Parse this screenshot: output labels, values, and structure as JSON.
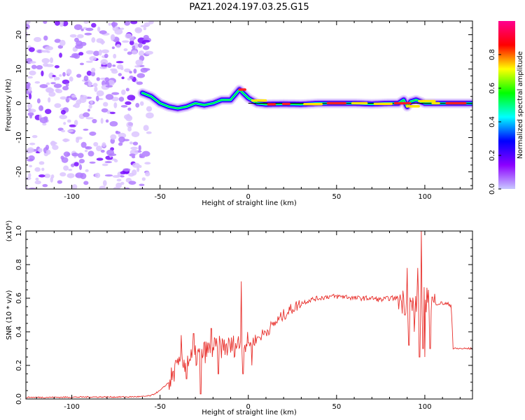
{
  "figure": {
    "title": "PAZ1.2024.197.03.25.G15"
  },
  "chart_data": [
    {
      "type": "heatmap",
      "xlabel": "Height of straight line (km)",
      "ylabel": "Frequency (Hz)",
      "xlim": [
        -126,
        127
      ],
      "ylim": [
        -25,
        24
      ],
      "x_ticks": [
        -100,
        -50,
        0,
        50,
        100
      ],
      "y_ticks": [
        -20,
        -10,
        0,
        10,
        20
      ],
      "grid": false,
      "colorbar": {
        "label": "Normalized spectral amplitude",
        "range": [
          0,
          1
        ],
        "ticks": [
          "0.0",
          "0.2",
          "0.4",
          "0.6",
          "0.8"
        ],
        "colors": [
          "#c8c8ff",
          "#8c00ff",
          "#0000ff",
          "#00ffff",
          "#00ff00",
          "#ffff00",
          "#ff0000",
          "#ff0090"
        ]
      },
      "ridge": {
        "x": [
          -60,
          -55,
          -50,
          -45,
          -40,
          -35,
          -30,
          -25,
          -20,
          -15,
          -10,
          -5,
          0,
          5,
          10,
          20,
          30,
          40,
          50,
          60,
          70,
          80,
          85,
          88,
          90,
          92,
          95,
          100,
          110,
          120,
          127
        ],
        "freq": [
          3,
          2,
          0,
          -1,
          -1.5,
          -1,
          0,
          -0.5,
          0,
          1,
          1,
          4,
          1.5,
          0,
          -0.3,
          -0.2,
          -0.3,
          0,
          0,
          0,
          -0.2,
          0,
          0,
          1,
          -1,
          0.5,
          1,
          0,
          0,
          0,
          0
        ]
      },
      "noise_region_x": [
        -126,
        -55
      ]
    },
    {
      "type": "line",
      "xlabel": "Height of straight line (km)",
      "ylabel": "SNR (10 * v/v)",
      "y_multiplier": "(x10⁴)",
      "xlim": [
        -126,
        127
      ],
      "ylim": [
        0,
        1.0
      ],
      "x_ticks": [
        -100,
        -50,
        0,
        50,
        100
      ],
      "y_ticks": [
        "0.0",
        "0.2",
        "0.4",
        "0.6",
        "0.8",
        "1.0"
      ],
      "grid": false,
      "series": [
        {
          "color": "#e8302c",
          "x": [
            -126,
            -110,
            -90,
            -70,
            -60,
            -55,
            -50,
            -45,
            -40,
            -35,
            -30,
            -25,
            -20,
            -15,
            -10,
            -5,
            0,
            5,
            10,
            15,
            20,
            25,
            30,
            35,
            40,
            45,
            50,
            55,
            60,
            65,
            70,
            75,
            80,
            85,
            88,
            90,
            95,
            100,
            105,
            110,
            115,
            116,
            120,
            127
          ],
          "y": [
            0.01,
            0.01,
            0.012,
            0.012,
            0.014,
            0.02,
            0.05,
            0.1,
            0.18,
            0.23,
            0.25,
            0.28,
            0.3,
            0.31,
            0.31,
            0.33,
            0.33,
            0.36,
            0.4,
            0.45,
            0.5,
            0.54,
            0.57,
            0.59,
            0.6,
            0.61,
            0.61,
            0.61,
            0.6,
            0.6,
            0.6,
            0.59,
            0.6,
            0.6,
            0.58,
            0.56,
            0.55,
            0.6,
            0.57,
            0.57,
            0.56,
            0.3,
            0.3,
            0.3
          ]
        }
      ],
      "spikes": [
        {
          "x": -41,
          "y": 0.23
        },
        {
          "x": -38,
          "y": 0.38
        },
        {
          "x": -35,
          "y": 0.12
        },
        {
          "x": -31,
          "y": 0.39
        },
        {
          "x": -27,
          "y": 0.03
        },
        {
          "x": -21,
          "y": 0.42
        },
        {
          "x": -17,
          "y": 0.15
        },
        {
          "x": -4,
          "y": 0.7
        },
        {
          "x": -3,
          "y": 0.15
        },
        {
          "x": 2,
          "y": 0.2
        },
        {
          "x": 90,
          "y": 0.78
        },
        {
          "x": 91,
          "y": 0.32
        },
        {
          "x": 94,
          "y": 0.4
        },
        {
          "x": 96,
          "y": 0.78
        },
        {
          "x": 97,
          "y": 0.25
        },
        {
          "x": 98,
          "y": 1.0
        },
        {
          "x": 99,
          "y": 0.3
        },
        {
          "x": 100,
          "y": 0.25
        },
        {
          "x": 102,
          "y": 0.65
        },
        {
          "x": 103,
          "y": 0.3
        }
      ]
    }
  ]
}
